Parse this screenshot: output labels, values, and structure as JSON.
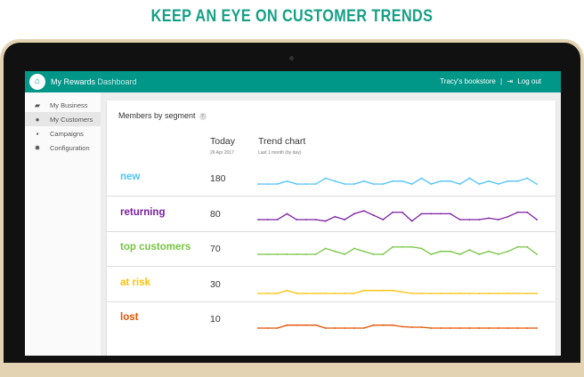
{
  "headline": "KEEP AN EYE ON CUSTOMER TRENDS",
  "app": {
    "title_main": "My Rewards",
    "title_dim": "Dashboard",
    "store": "Tracy's bookstore",
    "separator": "|",
    "logout": "Log out"
  },
  "sidebar": {
    "items": [
      {
        "label": "My Business",
        "icon": "briefcase-icon"
      },
      {
        "label": "My Customers",
        "icon": "person-icon"
      },
      {
        "label": "Campaigns",
        "icon": "chat-icon"
      },
      {
        "label": "Configuration",
        "icon": "gear-icon"
      }
    ]
  },
  "card": {
    "title": "Members by segment",
    "help": "?",
    "today_label": "Today",
    "date": "26 Apr 2017",
    "trend_label": "Trend chart",
    "trend_sub": "Last 1 month (by day)"
  },
  "segments": [
    {
      "name": "new",
      "count": "180",
      "color": "#4fc3f7",
      "trend": [
        0,
        0,
        0,
        1,
        0,
        0,
        0,
        2,
        1,
        0,
        0,
        1,
        0,
        0,
        1,
        1,
        0,
        2,
        0,
        1,
        1,
        0,
        2,
        0,
        1,
        0,
        1,
        1,
        2,
        0
      ]
    },
    {
      "name": "returning",
      "count": "80",
      "color": "#7b1fa2",
      "trend": [
        0,
        0,
        0,
        2,
        0,
        0,
        0,
        -0.5,
        1,
        0,
        2,
        3,
        1.5,
        0,
        2.5,
        2.5,
        -0.5,
        2,
        2,
        2,
        2,
        0,
        0,
        0,
        0.5,
        0,
        1,
        2.5,
        2.5,
        0
      ]
    },
    {
      "name": "top customers",
      "count": "70",
      "color": "#76c442",
      "trend": [
        0,
        0,
        0,
        0,
        0,
        0,
        0,
        2,
        1,
        0,
        2,
        1,
        0,
        0,
        2.5,
        2.5,
        2.5,
        2,
        0,
        1,
        1,
        0,
        1.5,
        0,
        1,
        0,
        1,
        2.5,
        2.5,
        0
      ]
    },
    {
      "name": "at risk",
      "count": "30",
      "color": "#ffc107",
      "trend": [
        0,
        0,
        0,
        1,
        0,
        0,
        0,
        0,
        0,
        0,
        0,
        1,
        1,
        1,
        1,
        0.5,
        0,
        0,
        0,
        0,
        0,
        0,
        0,
        0,
        0,
        0,
        0,
        0,
        0,
        0
      ]
    },
    {
      "name": "lost",
      "count": "10",
      "color": "#e65100",
      "trend": [
        0,
        0,
        0,
        1,
        1,
        1,
        1,
        0,
        0,
        0,
        0,
        0,
        1,
        1,
        1,
        0.5,
        0.3,
        0.3,
        0,
        0,
        0,
        0,
        0,
        0,
        0,
        0,
        0,
        0,
        0,
        0
      ]
    }
  ]
}
